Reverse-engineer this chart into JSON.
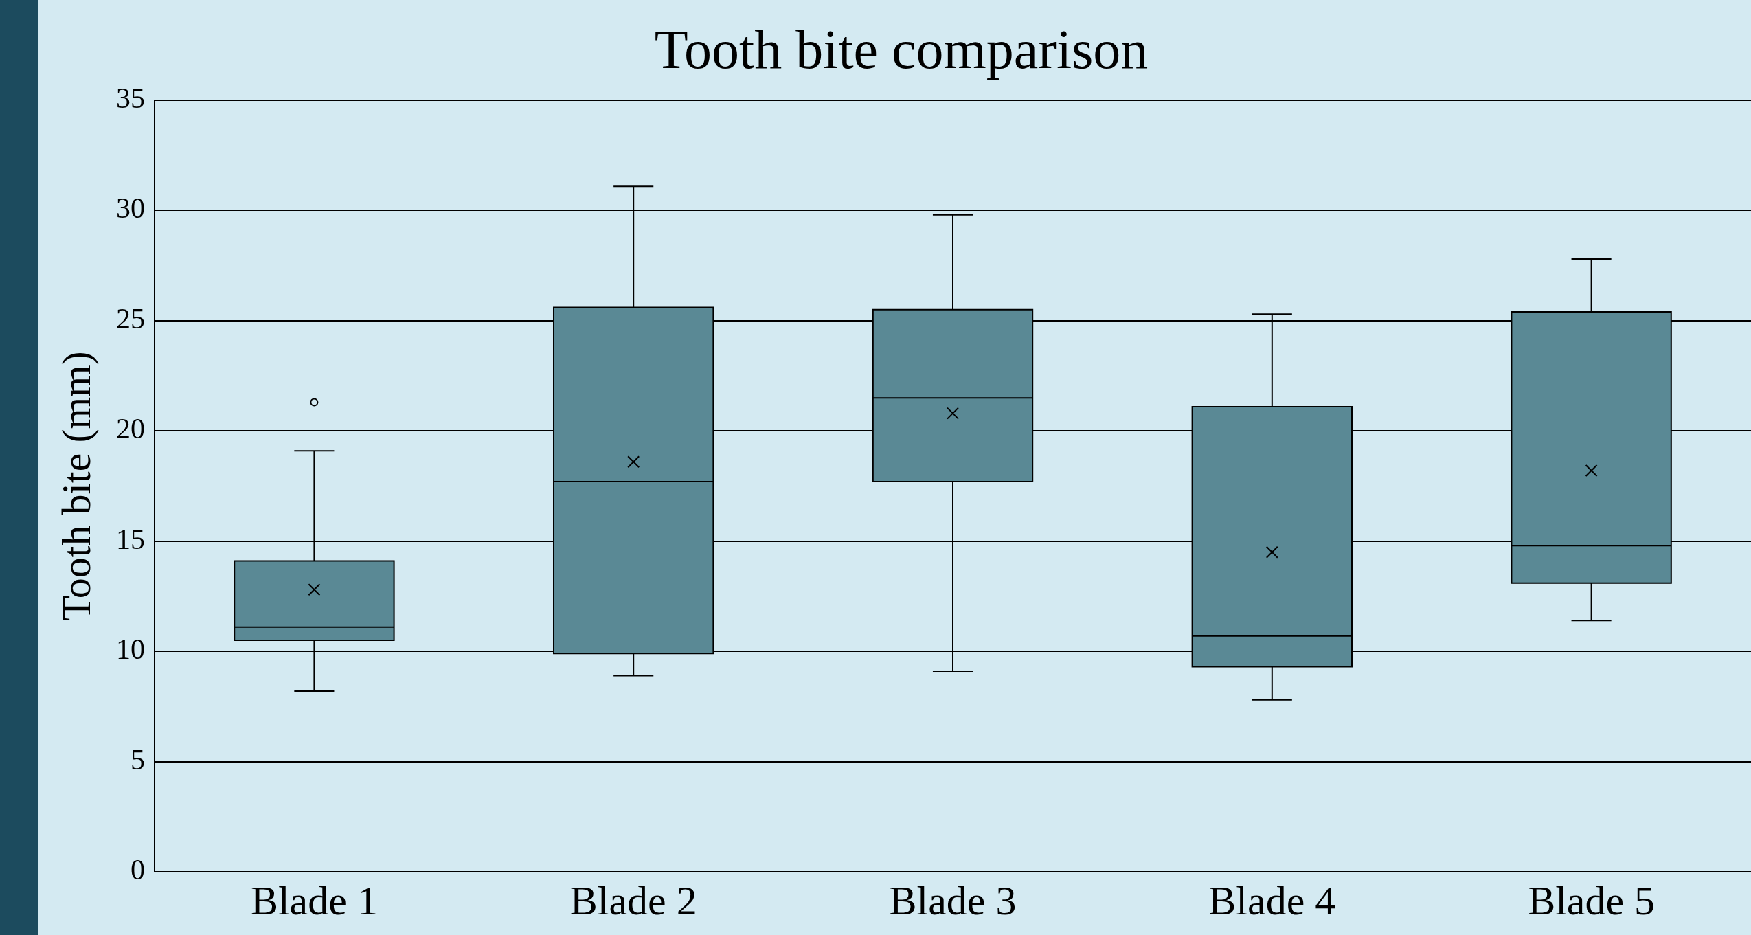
{
  "chart_data": {
    "type": "box",
    "title": "Tooth bite comparison",
    "ylabel": "Tooth bite (mm)",
    "categories": [
      "Blade 1",
      "Blade 2",
      "Blade 3",
      "Blade 4",
      "Blade 5"
    ],
    "color": "#5a8995",
    "boxes": [
      {
        "low": 8.2,
        "q1": 10.5,
        "median": 11.1,
        "q3": 14.1,
        "high": 19.1,
        "mean": 12.8,
        "outliers": [
          21.3
        ]
      },
      {
        "low": 8.9,
        "q1": 9.9,
        "median": 17.7,
        "q3": 25.6,
        "high": 31.1,
        "mean": 18.6
      },
      {
        "low": 9.1,
        "q1": 17.7,
        "median": 21.5,
        "q3": 25.5,
        "high": 29.8,
        "mean": 20.8
      },
      {
        "low": 7.8,
        "q1": 9.3,
        "median": 10.7,
        "q3": 21.1,
        "high": 25.3,
        "mean": 14.5
      },
      {
        "low": 11.4,
        "q1": 13.1,
        "median": 14.8,
        "q3": 25.4,
        "high": 27.8,
        "mean": 18.2
      }
    ],
    "ylim": [
      0,
      35
    ],
    "yticks": [
      0,
      5,
      10,
      15,
      20,
      25,
      30,
      35
    ],
    "grid": "y",
    "legend": false
  }
}
